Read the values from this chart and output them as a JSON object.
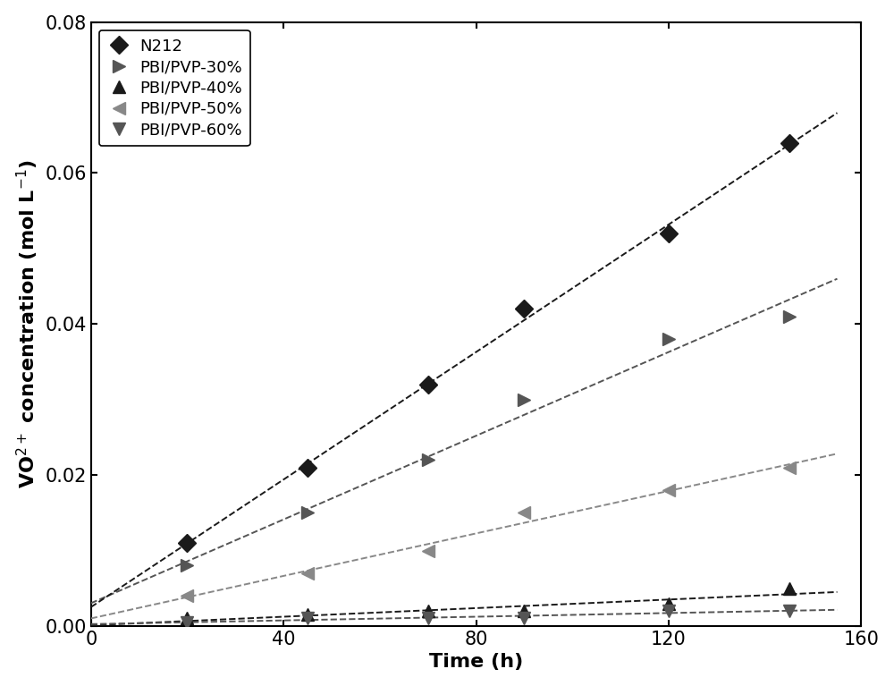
{
  "series": [
    {
      "label": "N212",
      "x": [
        20,
        45,
        70,
        90,
        120,
        145
      ],
      "y": [
        0.011,
        0.021,
        0.032,
        0.042,
        0.052,
        0.064
      ],
      "marker": "D",
      "color": "#1a1a1a",
      "markersize": 10,
      "zorder": 5
    },
    {
      "label": "PBI/PVP-30%",
      "x": [
        20,
        45,
        70,
        90,
        120,
        145
      ],
      "y": [
        0.008,
        0.015,
        0.022,
        0.03,
        0.038,
        0.041
      ],
      "marker": ">",
      "color": "#555555",
      "markersize": 10,
      "zorder": 4
    },
    {
      "label": "PBI/PVP-40%",
      "x": [
        20,
        45,
        70,
        90,
        120,
        145
      ],
      "y": [
        0.001,
        0.0015,
        0.002,
        0.002,
        0.003,
        0.005
      ],
      "marker": "^",
      "color": "#1a1a1a",
      "markersize": 10,
      "zorder": 3
    },
    {
      "label": "PBI/PVP-50%",
      "x": [
        20,
        45,
        70,
        90,
        120,
        145
      ],
      "y": [
        0.004,
        0.007,
        0.01,
        0.015,
        0.018,
        0.021
      ],
      "marker": "<",
      "color": "#888888",
      "markersize": 10,
      "zorder": 4
    },
    {
      "label": "PBI/PVP-60%",
      "x": [
        20,
        45,
        70,
        90,
        120,
        145
      ],
      "y": [
        0.0005,
        0.001,
        0.001,
        0.001,
        0.002,
        0.002
      ],
      "marker": "v",
      "color": "#555555",
      "markersize": 10,
      "zorder": 3
    }
  ],
  "xlabel": "Time (h)",
  "ylabel": "VO$^{2+}$ concentration (mol L$^{-1}$)",
  "xlim": [
    0,
    160
  ],
  "ylim": [
    0,
    0.08
  ],
  "xticks": [
    0,
    40,
    80,
    120,
    160
  ],
  "yticks": [
    0.0,
    0.02,
    0.04,
    0.06,
    0.08
  ],
  "legend_fontsize": 13,
  "axis_fontsize": 16,
  "tick_fontsize": 15,
  "figure_width": 10.0,
  "figure_height": 7.67,
  "dpi": 100
}
